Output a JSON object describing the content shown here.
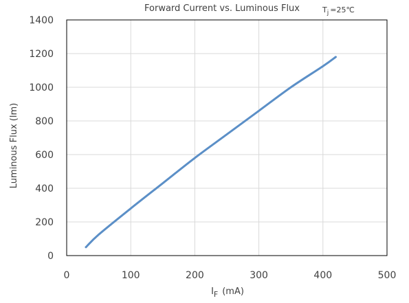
{
  "chart_data": {
    "type": "line",
    "title": "Forward Current vs. Luminous Flux",
    "annotation": {
      "symbol": "T",
      "subscript": "j",
      "value": "=25℃"
    },
    "xlabel": {
      "symbol": "I",
      "subscript": "F",
      "unit": "(mA)"
    },
    "ylabel": "Luminous Flux (lm)",
    "xlim": [
      0,
      500
    ],
    "ylim": [
      0,
      1400
    ],
    "xticks": [
      0,
      100,
      200,
      300,
      400,
      500
    ],
    "yticks": [
      0,
      200,
      400,
      600,
      800,
      1000,
      1200,
      1400
    ],
    "grid": true,
    "line_color": "#5b8fc7",
    "series": [
      {
        "x": [
          30,
          50,
          100,
          150,
          200,
          250,
          300,
          350,
          400,
          420
        ],
        "y": [
          50,
          125,
          280,
          430,
          580,
          720,
          860,
          1000,
          1125,
          1180
        ]
      }
    ]
  }
}
